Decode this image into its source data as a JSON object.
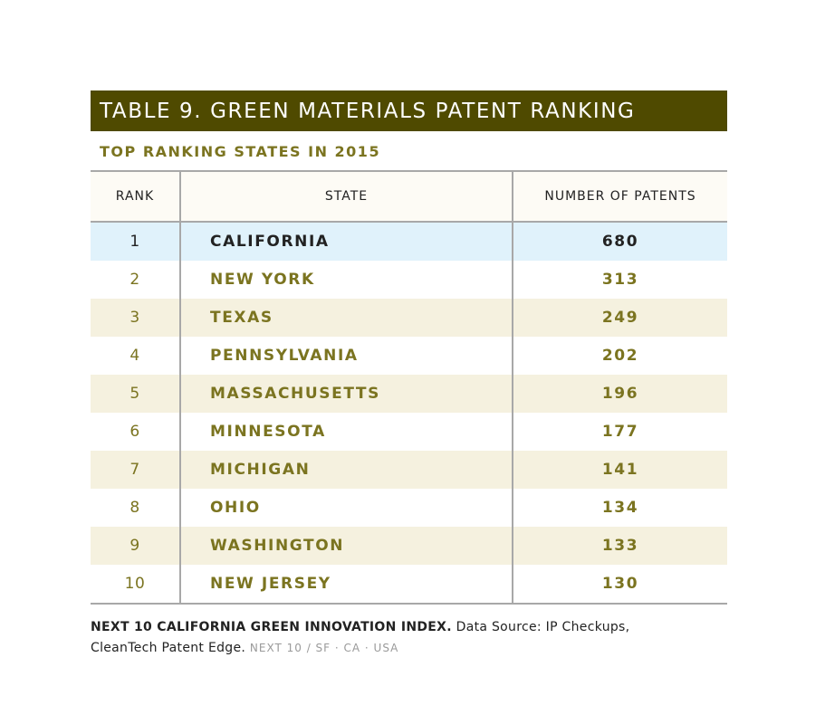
{
  "title": "TABLE 9. GREEN MATERIALS PATENT RANKING",
  "subtitle": "TOP RANKING STATES IN 2015",
  "columns": {
    "rank": "RANK",
    "state": "STATE",
    "patents": "NUMBER OF PATENTS"
  },
  "rows": [
    {
      "rank": "1",
      "state": "CALIFORNIA",
      "patents": "680"
    },
    {
      "rank": "2",
      "state": "NEW YORK",
      "patents": "313"
    },
    {
      "rank": "3",
      "state": "TEXAS",
      "patents": "249"
    },
    {
      "rank": "4",
      "state": "PENNSYLVANIA",
      "patents": "202"
    },
    {
      "rank": "5",
      "state": "MASSACHUSETTS",
      "patents": "196"
    },
    {
      "rank": "6",
      "state": "MINNESOTA",
      "patents": "177"
    },
    {
      "rank": "7",
      "state": "MICHIGAN",
      "patents": "141"
    },
    {
      "rank": "8",
      "state": "OHIO",
      "patents": "134"
    },
    {
      "rank": "9",
      "state": "WASHINGTON",
      "patents": "133"
    },
    {
      "rank": "10",
      "state": "NEW JERSEY",
      "patents": "130"
    }
  ],
  "footer": {
    "index_name": "NEXT 10 CALIFORNIA GREEN INNOVATION INDEX.",
    "source_line1": "Data Source: IP Checkups,",
    "source_line2": "CleanTech Patent Edge.",
    "org": "NEXT 10  /  SF · CA · USA"
  },
  "colors": {
    "title_bar": "#4f4a00",
    "accent_text": "#7b7420",
    "row_shade": "#f5f1df",
    "row_highlight": "#e0f2fb"
  }
}
